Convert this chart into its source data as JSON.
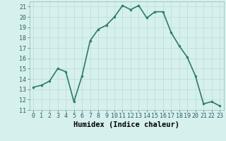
{
  "x": [
    0,
    1,
    2,
    3,
    4,
    5,
    6,
    7,
    8,
    9,
    10,
    11,
    12,
    13,
    14,
    15,
    16,
    17,
    18,
    19,
    20,
    21,
    22,
    23
  ],
  "y": [
    13.2,
    13.4,
    13.8,
    15.0,
    14.7,
    11.8,
    14.3,
    17.7,
    18.8,
    19.2,
    20.0,
    21.1,
    20.7,
    21.1,
    19.9,
    20.5,
    20.5,
    18.5,
    17.2,
    16.1,
    14.3,
    11.6,
    11.8,
    11.4
  ],
  "line_color": "#2d7a6e",
  "marker": "o",
  "marker_size": 2.0,
  "linewidth": 1.2,
  "background_color": "#d6f0ee",
  "grid_color": "#b8dbd8",
  "xlabel": "Humidex (Indice chaleur)",
  "xlim": [
    -0.5,
    23.5
  ],
  "ylim": [
    11,
    21.5
  ],
  "xticks": [
    0,
    1,
    2,
    3,
    4,
    5,
    6,
    7,
    8,
    9,
    10,
    11,
    12,
    13,
    14,
    15,
    16,
    17,
    18,
    19,
    20,
    21,
    22,
    23
  ],
  "yticks": [
    11,
    12,
    13,
    14,
    15,
    16,
    17,
    18,
    19,
    20,
    21
  ],
  "tick_fontsize": 6.0,
  "xlabel_fontsize": 7.5
}
